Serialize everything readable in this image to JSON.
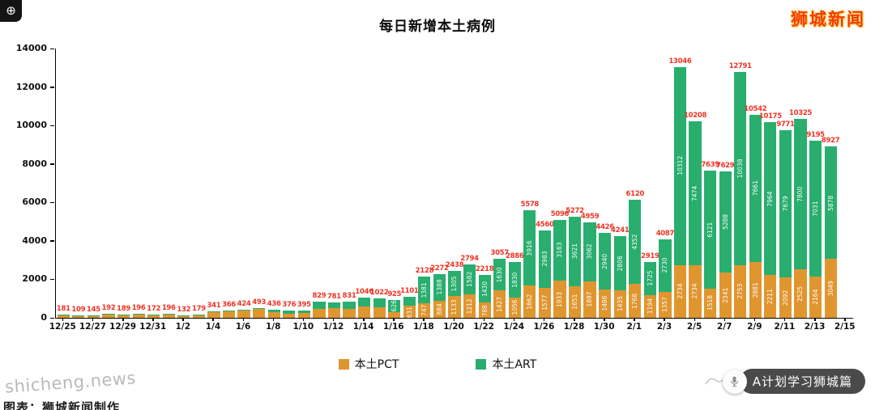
{
  "header": {
    "title": "每日新增本土病例",
    "watermark": "狮城新闻"
  },
  "footer": {
    "site": "shicheng.news",
    "source": "图表：狮城新闻制作",
    "badge": "A计划学习狮城篇"
  },
  "colors": {
    "pct": "#e0962f",
    "art": "#29ae6e",
    "total_label": "#ee3424",
    "brand": "#f43b0a"
  },
  "chart_data": {
    "type": "bar",
    "stacked": true,
    "title": "每日新增本土病例",
    "xlabel": "",
    "ylabel": "",
    "ylim": [
      0,
      14000
    ],
    "yticks": [
      0,
      2000,
      4000,
      6000,
      8000,
      10000,
      12000,
      14000
    ],
    "grid": false,
    "legend_position": "bottom",
    "categories": [
      "12/25",
      "12/26",
      "12/27",
      "12/28",
      "12/29",
      "12/30",
      "12/31",
      "1/1",
      "1/2",
      "1/3",
      "1/4",
      "1/5",
      "1/6",
      "1/7",
      "1/8",
      "1/9",
      "1/10",
      "1/11",
      "1/12",
      "1/13",
      "1/14",
      "1/15",
      "1/16",
      "1/17",
      "1/18",
      "1/19",
      "1/20",
      "1/21",
      "1/22",
      "1/23",
      "1/24",
      "1/25",
      "1/26",
      "1/27",
      "1/28",
      "1/29",
      "1/30",
      "1/31",
      "2/1",
      "2/2",
      "2/3",
      "2/4",
      "2/5",
      "2/6",
      "2/7",
      "2/8",
      "2/9",
      "2/10",
      "2/11",
      "2/12",
      "2/13",
      "2/14"
    ],
    "x_tick_labels": [
      "12/25",
      "12/27",
      "12/29",
      "12/31",
      "1/2",
      "1/4",
      "1/6",
      "1/8",
      "1/10",
      "1/12",
      "1/14",
      "1/16",
      "1/18",
      "1/20",
      "1/22",
      "1/24",
      "1/26",
      "1/28",
      "1/30",
      "2/1",
      "2/3",
      "2/5",
      "2/7",
      "2/9",
      "2/11",
      "2/13",
      "2/15"
    ],
    "series": [
      {
        "name": "本土PCT",
        "color": "#e0962f",
        "values": [
          170,
          101,
          134,
          178,
          176,
          181,
          158,
          179,
          119,
          161,
          315,
          334,
          383,
          444,
          287,
          206,
          243,
          446,
          486,
          480,
          582,
          552,
          299,
          631,
          747,
          884,
          1133,
          1212,
          788,
          1427,
          1056,
          1662,
          1577,
          1933,
          1651,
          1897,
          1486,
          1435,
          1768,
          1194,
          1357,
          2734,
          2734,
          1518,
          2341,
          2753,
          2881,
          2211,
          2092,
          2525,
          2164,
          3049
        ]
      },
      {
        "name": "本土ART",
        "color": "#29ae6e",
        "values": [
          11,
          8,
          11,
          14,
          13,
          15,
          14,
          17,
          13,
          18,
          26,
          32,
          41,
          49,
          149,
          170,
          152,
          383,
          295,
          351,
          464,
          470,
          626,
          470,
          1381,
          1388,
          1305,
          1582,
          1430,
          1630,
          1830,
          3916,
          2983,
          3163,
          3621,
          3062,
          2940,
          2806,
          4352,
          1725,
          2730,
          10312,
          7474,
          6121,
          5288,
          10038,
          7661,
          7964,
          7679,
          7800,
          7031,
          5878
        ]
      }
    ],
    "totals": [
      181,
      109,
      145,
      192,
      189,
      196,
      172,
      196,
      132,
      179,
      341,
      366,
      424,
      493,
      436,
      376,
      395,
      829,
      781,
      831,
      1046,
      1022,
      925,
      1101,
      2128,
      2272,
      2438,
      2794,
      2218,
      3057,
      2886,
      5578,
      4560,
      5096,
      5272,
      4959,
      4426,
      4241,
      6120,
      2919,
      4087,
      13046,
      10208,
      7639,
      7629,
      12791,
      10542,
      10175,
      9771,
      10325,
      9195,
      8927
    ]
  }
}
